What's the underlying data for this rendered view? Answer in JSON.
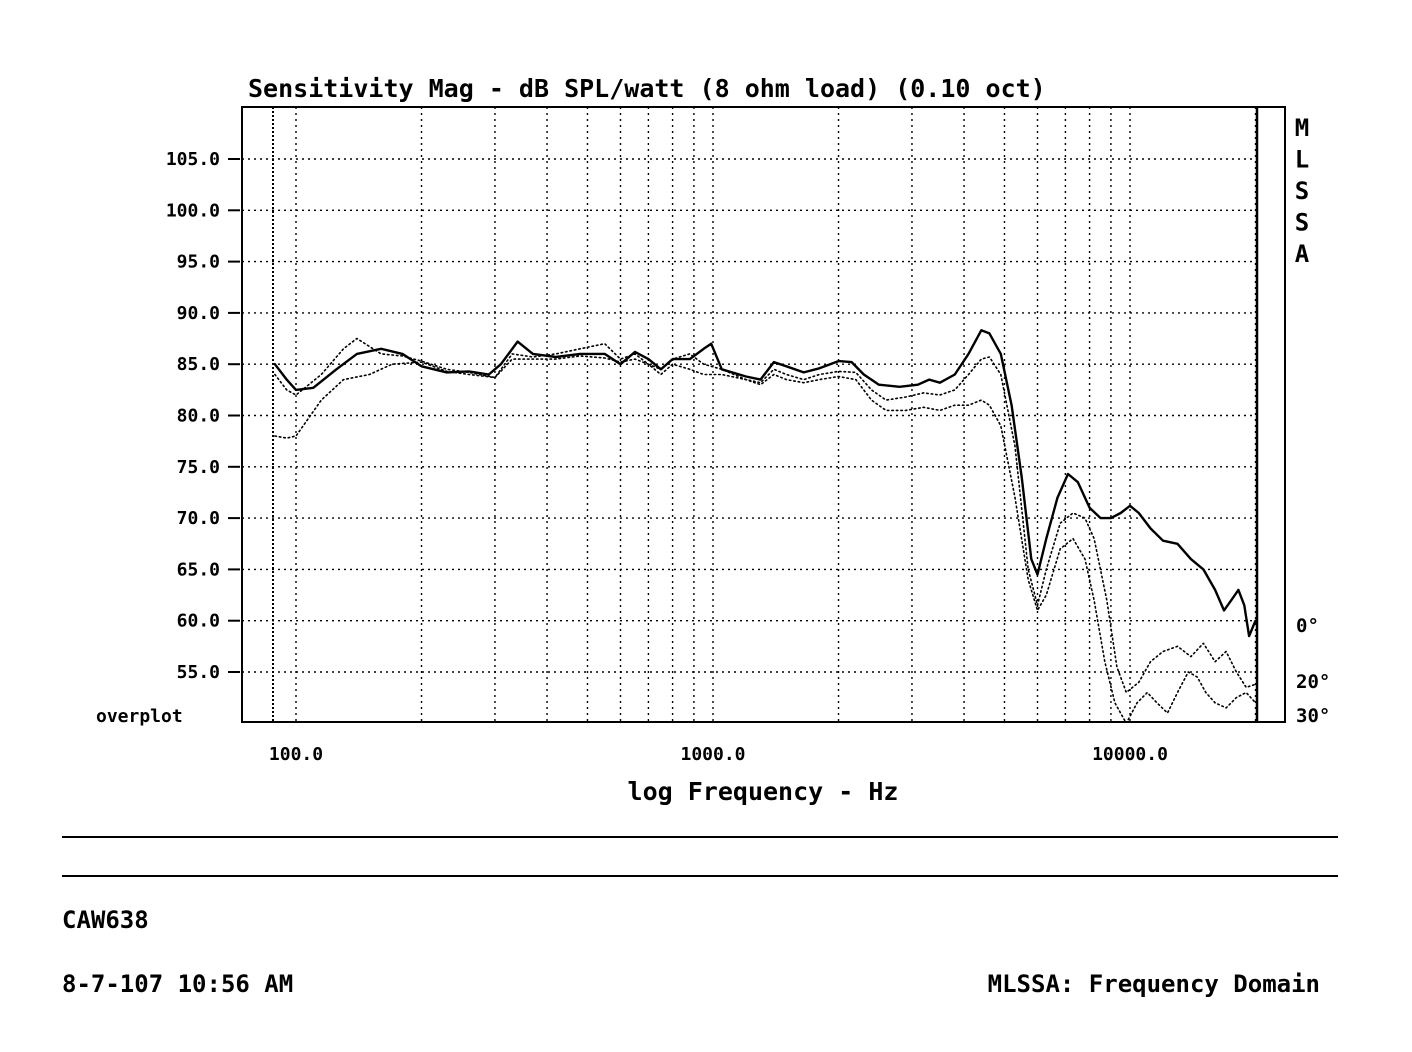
{
  "chart_data": {
    "type": "line",
    "title": "Sensitivity Mag - dB SPL/watt (8 ohm load) (0.10 oct)",
    "xlabel": "log Frequency - Hz",
    "ylabel": "",
    "x_scale": "log",
    "xlim": [
      75,
      21000
    ],
    "ylim": [
      51,
      111
    ],
    "grid": true,
    "x_tick_labels": [
      {
        "value": 100,
        "label": "100.0"
      },
      {
        "value": 1000,
        "label": "1000.0"
      },
      {
        "value": 10000,
        "label": "10000.0"
      }
    ],
    "y_ticks": [
      55,
      60,
      65,
      70,
      75,
      80,
      85,
      90,
      95,
      100,
      105
    ],
    "y_tick_labels": [
      "55.0",
      "60.0",
      "65.0",
      "70.0",
      "75.0",
      "80.0",
      "85.0",
      "90.0",
      "95.0",
      "100.0",
      "105.0"
    ],
    "bottom_left_label": "overplot",
    "series": [
      {
        "name": "0°",
        "style": "solid",
        "points": [
          [
            89,
            85
          ],
          [
            95,
            83.5
          ],
          [
            100,
            82.5
          ],
          [
            110,
            82.7
          ],
          [
            125,
            84.5
          ],
          [
            140,
            86
          ],
          [
            160,
            86.5
          ],
          [
            180,
            86
          ],
          [
            200,
            84.8
          ],
          [
            230,
            84.2
          ],
          [
            260,
            84.3
          ],
          [
            290,
            84
          ],
          [
            310,
            85
          ],
          [
            340,
            87.2
          ],
          [
            370,
            86
          ],
          [
            420,
            85.7
          ],
          [
            480,
            86
          ],
          [
            550,
            86
          ],
          [
            600,
            85
          ],
          [
            650,
            86.2
          ],
          [
            700,
            85.5
          ],
          [
            750,
            84.5
          ],
          [
            800,
            85.5
          ],
          [
            880,
            85.5
          ],
          [
            950,
            86.5
          ],
          [
            990,
            87
          ],
          [
            1050,
            84.5
          ],
          [
            1200,
            83.8
          ],
          [
            1300,
            83.5
          ],
          [
            1400,
            85.2
          ],
          [
            1500,
            84.8
          ],
          [
            1650,
            84.2
          ],
          [
            1800,
            84.6
          ],
          [
            2000,
            85.3
          ],
          [
            2150,
            85.2
          ],
          [
            2300,
            84
          ],
          [
            2500,
            83
          ],
          [
            2800,
            82.8
          ],
          [
            3100,
            83
          ],
          [
            3300,
            83.5
          ],
          [
            3500,
            83.2
          ],
          [
            3800,
            84
          ],
          [
            4100,
            86
          ],
          [
            4400,
            88.3
          ],
          [
            4600,
            88
          ],
          [
            4900,
            86
          ],
          [
            5200,
            81
          ],
          [
            5500,
            74
          ],
          [
            5800,
            66
          ],
          [
            6000,
            64.5
          ],
          [
            6300,
            68
          ],
          [
            6700,
            72
          ],
          [
            7100,
            74.3
          ],
          [
            7500,
            73.5
          ],
          [
            8000,
            71
          ],
          [
            8500,
            70
          ],
          [
            9000,
            70
          ],
          [
            9500,
            70.5
          ],
          [
            10000,
            71.2
          ],
          [
            10500,
            70.5
          ],
          [
            11200,
            69
          ],
          [
            12000,
            67.8
          ],
          [
            13000,
            67.5
          ],
          [
            14000,
            66
          ],
          [
            15000,
            65
          ],
          [
            16000,
            63
          ],
          [
            16800,
            61
          ],
          [
            17500,
            62
          ],
          [
            18200,
            63
          ],
          [
            18800,
            61.5
          ],
          [
            19300,
            58.5
          ],
          [
            20000,
            60
          ]
        ]
      },
      {
        "name": "20°",
        "style": "dotted",
        "points": [
          [
            89,
            84
          ],
          [
            95,
            82.5
          ],
          [
            100,
            82
          ],
          [
            115,
            84
          ],
          [
            130,
            86.5
          ],
          [
            140,
            87.5
          ],
          [
            160,
            86
          ],
          [
            180,
            85.8
          ],
          [
            200,
            85.3
          ],
          [
            230,
            84.5
          ],
          [
            260,
            84.2
          ],
          [
            300,
            83.7
          ],
          [
            330,
            86
          ],
          [
            370,
            85.7
          ],
          [
            420,
            86
          ],
          [
            480,
            86.5
          ],
          [
            550,
            87
          ],
          [
            600,
            85.5
          ],
          [
            650,
            86
          ],
          [
            700,
            85
          ],
          [
            750,
            84.5
          ],
          [
            800,
            85.5
          ],
          [
            880,
            86
          ],
          [
            950,
            85
          ],
          [
            1050,
            84.5
          ],
          [
            1200,
            83.5
          ],
          [
            1300,
            83.2
          ],
          [
            1400,
            84.5
          ],
          [
            1500,
            84
          ],
          [
            1650,
            83.5
          ],
          [
            1800,
            84
          ],
          [
            2000,
            84.3
          ],
          [
            2200,
            84.2
          ],
          [
            2400,
            82.5
          ],
          [
            2600,
            81.5
          ],
          [
            2900,
            81.8
          ],
          [
            3200,
            82.2
          ],
          [
            3500,
            82
          ],
          [
            3800,
            82.5
          ],
          [
            4100,
            84
          ],
          [
            4400,
            85.5
          ],
          [
            4600,
            85.7
          ],
          [
            4900,
            84
          ],
          [
            5300,
            77
          ],
          [
            5700,
            65
          ],
          [
            6000,
            61.5
          ],
          [
            6300,
            65
          ],
          [
            6800,
            69.5
          ],
          [
            7300,
            70.5
          ],
          [
            7800,
            70
          ],
          [
            8200,
            68
          ],
          [
            8800,
            62
          ],
          [
            9300,
            55.5
          ],
          [
            9800,
            53
          ],
          [
            10500,
            54
          ],
          [
            11200,
            56
          ],
          [
            12000,
            57
          ],
          [
            13000,
            57.5
          ],
          [
            14000,
            56.5
          ],
          [
            15000,
            57.8
          ],
          [
            16000,
            56
          ],
          [
            17000,
            57
          ],
          [
            18000,
            55
          ],
          [
            19000,
            53.5
          ],
          [
            20000,
            53.8
          ]
        ]
      },
      {
        "name": "30°",
        "style": "dotted",
        "points": [
          [
            89,
            78
          ],
          [
            95,
            77.8
          ],
          [
            100,
            78
          ],
          [
            115,
            81.5
          ],
          [
            130,
            83.5
          ],
          [
            150,
            84
          ],
          [
            170,
            85
          ],
          [
            200,
            85.2
          ],
          [
            230,
            84.3
          ],
          [
            260,
            84
          ],
          [
            300,
            83.7
          ],
          [
            330,
            85.5
          ],
          [
            370,
            85.5
          ],
          [
            420,
            85.5
          ],
          [
            480,
            85.8
          ],
          [
            550,
            85.6
          ],
          [
            600,
            85.2
          ],
          [
            650,
            85.5
          ],
          [
            700,
            85
          ],
          [
            750,
            84
          ],
          [
            800,
            85
          ],
          [
            880,
            84.5
          ],
          [
            950,
            84
          ],
          [
            1050,
            84
          ],
          [
            1200,
            83.5
          ],
          [
            1300,
            83
          ],
          [
            1400,
            84
          ],
          [
            1500,
            83.5
          ],
          [
            1650,
            83.2
          ],
          [
            1800,
            83.5
          ],
          [
            2000,
            83.8
          ],
          [
            2200,
            83.5
          ],
          [
            2400,
            81.5
          ],
          [
            2600,
            80.5
          ],
          [
            2900,
            80.5
          ],
          [
            3200,
            80.8
          ],
          [
            3500,
            80.5
          ],
          [
            3800,
            81
          ],
          [
            4100,
            81
          ],
          [
            4400,
            81.5
          ],
          [
            4600,
            81
          ],
          [
            4900,
            79
          ],
          [
            5300,
            72
          ],
          [
            5700,
            64
          ],
          [
            6000,
            61
          ],
          [
            6300,
            62.5
          ],
          [
            6800,
            67
          ],
          [
            7300,
            68
          ],
          [
            7800,
            66
          ],
          [
            8200,
            62
          ],
          [
            8700,
            56
          ],
          [
            9200,
            52
          ],
          [
            9800,
            50
          ],
          [
            10400,
            52
          ],
          [
            11000,
            53
          ],
          [
            11600,
            52
          ],
          [
            12300,
            51
          ],
          [
            13000,
            53
          ],
          [
            13800,
            55
          ],
          [
            14500,
            54.5
          ],
          [
            15200,
            53
          ],
          [
            16000,
            52
          ],
          [
            17000,
            51.5
          ],
          [
            18000,
            52.5
          ],
          [
            19000,
            53
          ],
          [
            20000,
            52
          ]
        ]
      }
    ],
    "legend_position": "right"
  },
  "brand": {
    "vertical_label": [
      "M",
      "L",
      "S",
      "S",
      "A"
    ]
  },
  "footer": {
    "file_id": "CAW638",
    "timestamp": "8-7-107 10:56 AM",
    "program": "MLSSA: Frequency Domain"
  }
}
